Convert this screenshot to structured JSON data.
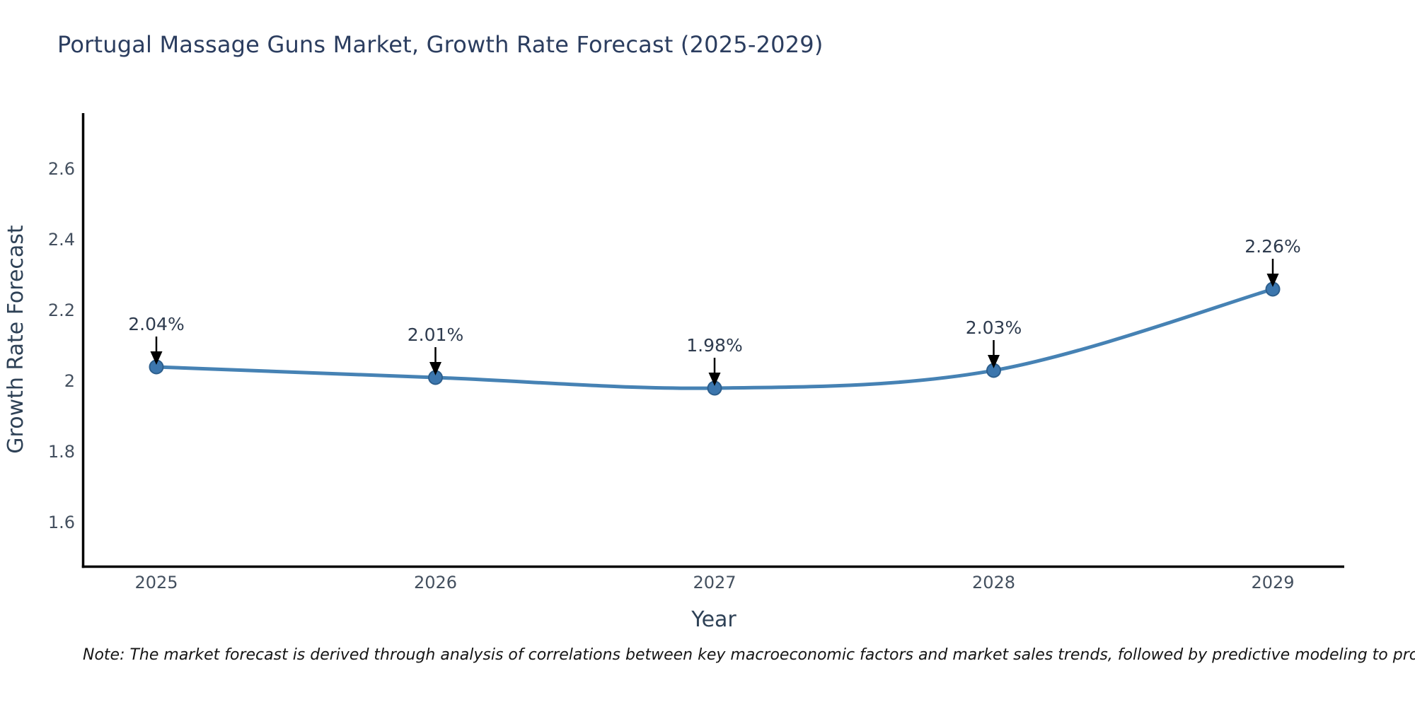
{
  "title": "Portugal Massage Guns Market, Growth Rate Forecast (2025-2029)",
  "note": "Note: The market forecast is derived through analysis of correlations between key macroeconomic factors and market sales trends, followed by predictive modeling to project future sales",
  "chart_data": {
    "type": "line",
    "title": "Portugal Massage Guns Market, Growth Rate Forecast (2025-2029)",
    "x": [
      2025,
      2026,
      2027,
      2028,
      2029
    ],
    "values": [
      2.04,
      2.01,
      1.98,
      2.03,
      2.26
    ],
    "point_labels": [
      "2.04%",
      "2.01%",
      "1.98%",
      "2.03%",
      "2.26%"
    ],
    "xlabel": "Year",
    "ylabel": "Growth Rate Forecast",
    "xtick_labels": [
      "2025",
      "2026",
      "2027",
      "2028",
      "2029"
    ],
    "ytick_labels": [
      "1.6",
      "1.8",
      "2",
      "2.2",
      "2.4",
      "2.6"
    ],
    "ylim": [
      1.48,
      2.76
    ],
    "grid": false,
    "legend": "none",
    "line_shape": "spline",
    "colors": {
      "line": "#4682B4",
      "marker_fill": "#3C76AD",
      "marker_edge": "#2D5F8D",
      "axis": "#000000",
      "arrow": "#000000",
      "title_text": "#2b3d5f",
      "tick_text": "#44505f"
    }
  }
}
